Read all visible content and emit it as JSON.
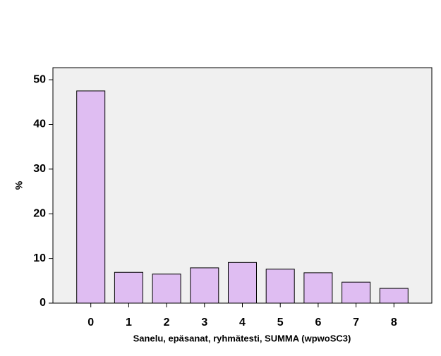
{
  "chart_data": {
    "type": "bar",
    "x_label": "Sanelu, epäsanat, ryhmätesti, SUMMA (wpwoSC3)",
    "y_label": "%",
    "categories": [
      "0",
      "1",
      "2",
      "3",
      "4",
      "5",
      "6",
      "7",
      "8"
    ],
    "values": [
      47.5,
      6.9,
      6.5,
      7.9,
      9.1,
      7.6,
      6.8,
      4.7,
      3.3
    ],
    "color": "#dfbdf2",
    "ylim": [
      0,
      52.7
    ],
    "yticks": [
      0,
      10,
      20,
      30,
      40,
      50
    ],
    "grid": false
  }
}
